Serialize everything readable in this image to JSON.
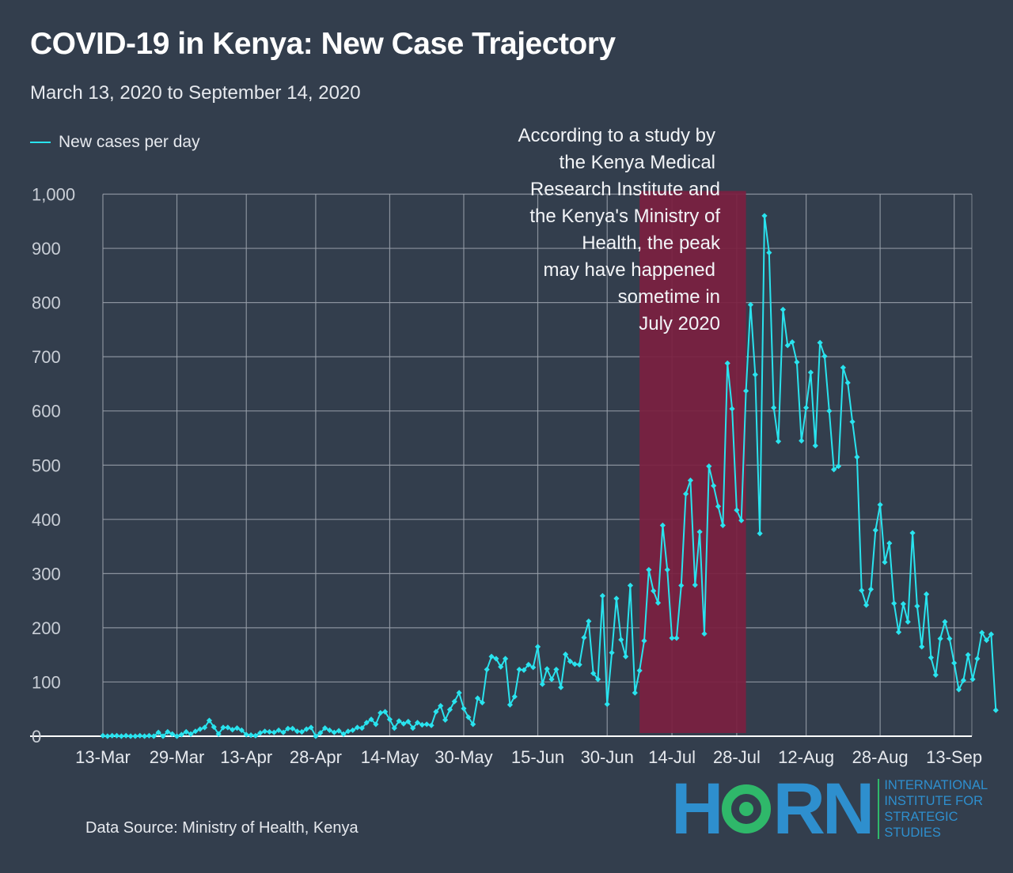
{
  "header": {
    "title": "COVID-19 in Kenya: New Case Trajectory",
    "subtitle": "March 13, 2020 to September 14, 2020"
  },
  "footer": {
    "source": "Data Source: Ministry of Health, Kenya"
  },
  "logo": {
    "word_h": "H",
    "word_rn": "RN",
    "lines": [
      "INTERNATIONAL",
      "INSTITUTE FOR",
      "STRATEGIC",
      "STUDIES"
    ]
  },
  "colors": {
    "background": "#333e4d",
    "line": "#29e3ee",
    "highlight": "#7b2040",
    "grid": "#9aa1ab"
  },
  "chart_data": {
    "type": "line",
    "title": "COVID-19 in Kenya: New Case Trajectory",
    "subtitle": "March 13, 2020 to September 14, 2020",
    "xlabel": "",
    "ylabel": "",
    "ylim": [
      0,
      1000
    ],
    "yticks": [
      0,
      100,
      200,
      300,
      400,
      500,
      600,
      700,
      800,
      900,
      1000
    ],
    "ytick_labels": [
      "0",
      "100",
      "200",
      "300",
      "400",
      "500",
      "600",
      "700",
      "800",
      "900",
      "1,000"
    ],
    "xtick_labels": [
      "13-Mar",
      "29-Mar",
      "13-Apr",
      "28-Apr",
      "14-May",
      "30-May",
      "15-Jun",
      "30-Jun",
      "14-Jul",
      "28-Jul",
      "12-Aug",
      "28-Aug",
      "13-Sep"
    ],
    "x_start": "2020-03-13",
    "x_end": "2020-09-14",
    "grid": true,
    "legend_position": "top-left",
    "series": [
      {
        "name": "New cases per day",
        "values": [
          1,
          0,
          1,
          1,
          0,
          1,
          0,
          0,
          1,
          0,
          1,
          0,
          7,
          0,
          8,
          4,
          0,
          3,
          8,
          4,
          9,
          13,
          16,
          29,
          17,
          4,
          16,
          16,
          12,
          15,
          11,
          3,
          2,
          1,
          6,
          9,
          8,
          7,
          11,
          7,
          14,
          14,
          9,
          8,
          13,
          16,
          0,
          6,
          15,
          11,
          7,
          10,
          4,
          9,
          11,
          16,
          15,
          25,
          31,
          22,
          43,
          45,
          31,
          15,
          28,
          23,
          27,
          15,
          25,
          21,
          22,
          20,
          45,
          56,
          30,
          49,
          64,
          80,
          51,
          35,
          22,
          70,
          62,
          123,
          147,
          143,
          128,
          143,
          58,
          73,
          123,
          122,
          132,
          127,
          165,
          96,
          124,
          105,
          123,
          90,
          151,
          138,
          133,
          132,
          182,
          212,
          116,
          105,
          259,
          59,
          154,
          254,
          178,
          147,
          278,
          80,
          121,
          176,
          307,
          268,
          246,
          389,
          307,
          181,
          181,
          278,
          447,
          472,
          279,
          377,
          189,
          498,
          462,
          424,
          389,
          688,
          604,
          417,
          398,
          637,
          796,
          667,
          374,
          960,
          892,
          606,
          544,
          787,
          721,
          727,
          690,
          545,
          606,
          671,
          536,
          726,
          701,
          600,
          492,
          498,
          680,
          652,
          580,
          515,
          269,
          242,
          271,
          380,
          427,
          321,
          356,
          245,
          192,
          244,
          211,
          375,
          240,
          165,
          262,
          145,
          113,
          180,
          211,
          180,
          135,
          86,
          103,
          150,
          105,
          143,
          191,
          177,
          188,
          48
        ]
      }
    ],
    "highlight_region": {
      "from_label": "between 30-Jun and 14-Jul",
      "to_label": "28-Jul",
      "from_day_index": 116,
      "to_day_index": 139
    },
    "annotation": {
      "lines": [
        "According to a study by",
        "the Kenya Medical",
        "Research Institute and",
        "the Kenya's Ministry of",
        "Health, the peak",
        "may have happened",
        "sometime in",
        "July 2020"
      ]
    }
  }
}
